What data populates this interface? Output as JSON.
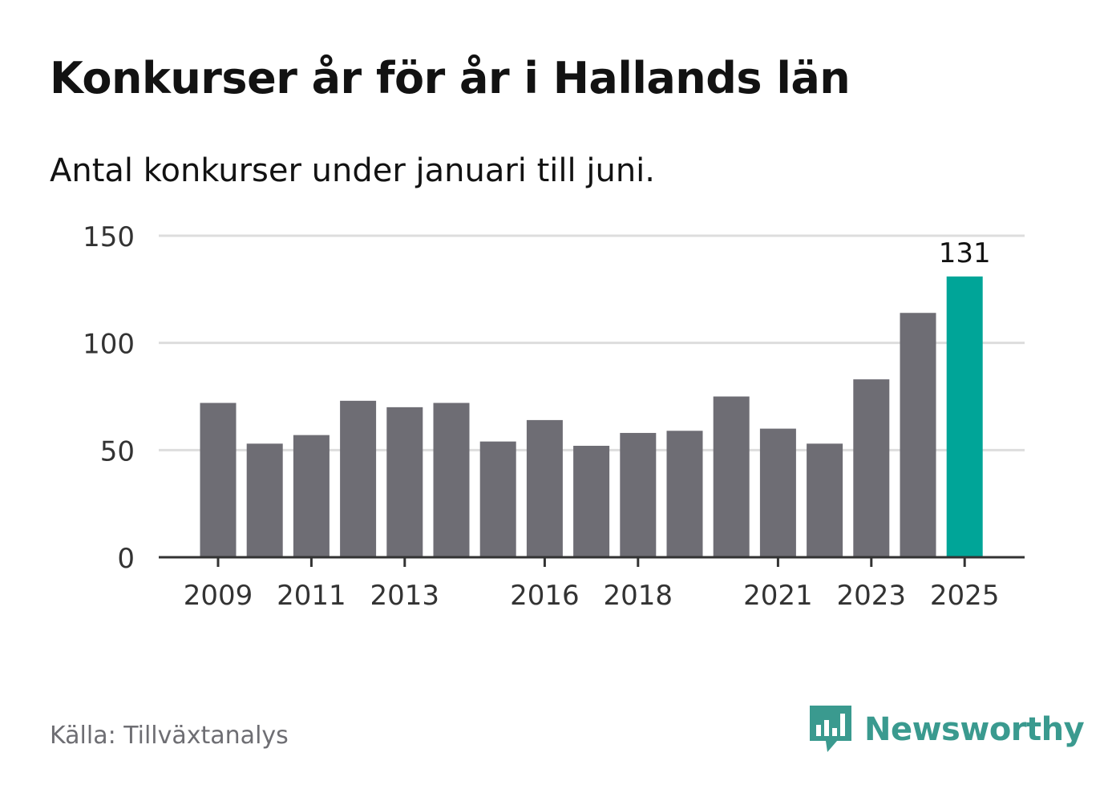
{
  "title": "Konkurser år för år i Hallands län",
  "subtitle": "Antal konkurser under januari till juni.",
  "source": "Källa: Tillväxtanalys",
  "brand": {
    "name": "Newsworthy",
    "icon": "newsworthy-bar-chart-logo",
    "color": "#3a9a8f"
  },
  "colors": {
    "bar": "#6e6d74",
    "highlight": "#00a598",
    "grid": "#dddddd",
    "axis": "#333333"
  },
  "chart_data": {
    "type": "bar",
    "categories": [
      "2009",
      "2010",
      "2011",
      "2012",
      "2013",
      "2014",
      "2015",
      "2016",
      "2017",
      "2018",
      "2019",
      "2020",
      "2021",
      "2022",
      "2023",
      "2024",
      "2025"
    ],
    "values": [
      72,
      53,
      57,
      73,
      70,
      72,
      54,
      64,
      52,
      58,
      59,
      75,
      60,
      53,
      83,
      114,
      131
    ],
    "tick_labels": [
      "2009",
      "2011",
      "2013",
      "2016",
      "2018",
      "2021",
      "2023",
      "2025"
    ],
    "yticks": [
      0,
      50,
      100,
      150
    ],
    "ylim": [
      0,
      150
    ],
    "highlight_index": 16,
    "value_labels": [
      {
        "index": 16,
        "text": "131"
      }
    ],
    "grid": true,
    "legend": false
  }
}
